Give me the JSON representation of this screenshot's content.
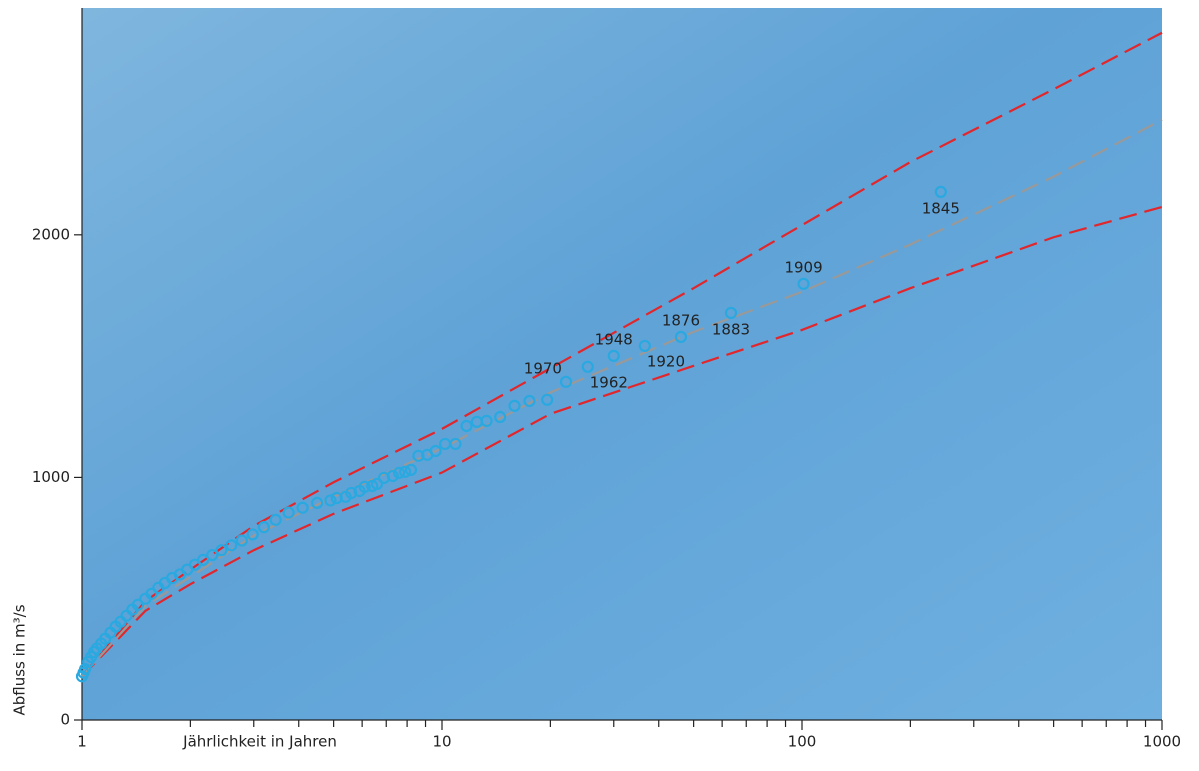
{
  "chart_data": {
    "type": "scatter",
    "x_label": "Jährlichkeit in Jahren",
    "y_label": "Abfluss in m³/s",
    "log_x": true,
    "xlim": [
      1,
      1000
    ],
    "xticks": [
      1,
      10,
      100,
      1000
    ],
    "xminorticks": [
      2,
      3,
      4,
      5,
      6,
      7,
      8,
      9,
      20,
      30,
      40,
      50,
      60,
      70,
      80,
      90,
      200,
      300,
      400,
      500,
      600,
      700,
      800,
      900
    ],
    "ylim": [
      0,
      2935
    ],
    "yticks": [
      0,
      1000,
      2000
    ],
    "series": [
      {
        "type": "line",
        "color": "#e2262b",
        "dashed": true,
        "x": [
          1,
          1.5,
          2,
          3,
          5,
          10,
          20,
          50,
          100,
          200,
          500,
          1000
        ],
        "values": [
          180,
          490,
          620,
          800,
          980,
          1200,
          1450,
          1780,
          2040,
          2300,
          2600,
          2833
        ]
      },
      {
        "type": "line",
        "color": "#e2262b",
        "dashed": true,
        "x": [
          1,
          1.5,
          2,
          3,
          5,
          10,
          20,
          50,
          100,
          200,
          500,
          1000
        ],
        "values": [
          180,
          450,
          560,
          700,
          850,
          1020,
          1262,
          1460,
          1608,
          1780,
          1990,
          2115
        ]
      },
      {
        "type": "line",
        "color": "#999999",
        "dashed": true,
        "x": [
          1,
          1.5,
          2,
          3,
          5,
          10,
          20,
          50,
          100,
          200,
          500,
          1000
        ],
        "values": [
          180,
          470,
          590,
          760,
          920,
          1120,
          1350,
          1600,
          1765,
          1960,
          2240,
          2474
        ]
      },
      {
        "type": "scatter",
        "color": "#29a9e0",
        "x": [
          1.0,
          1.01,
          1.02,
          1.04,
          1.06,
          1.08,
          1.1,
          1.13,
          1.16,
          1.2,
          1.24,
          1.28,
          1.33,
          1.38,
          1.43,
          1.5,
          1.56,
          1.63,
          1.7,
          1.78,
          1.87,
          1.96,
          2.06,
          2.17,
          2.3,
          2.44,
          2.6,
          2.78,
          2.98,
          3.2,
          3.45,
          3.75,
          4.1,
          4.5,
          4.9,
          5.1,
          5.4,
          5.6,
          5.9,
          6.1,
          6.4,
          6.6,
          6.9,
          7.3,
          7.6,
          7.9,
          8.2,
          8.6,
          9.1,
          9.6,
          10.2,
          10.9,
          11.7,
          12.5,
          13.3,
          14.5,
          15.9,
          17.5,
          19.6,
          22.1,
          25.4,
          30,
          36.6,
          46.1,
          63.5,
          101,
          243
        ],
        "values": [
          180,
          195,
          210,
          240,
          260,
          280,
          295,
          315,
          335,
          360,
          385,
          405,
          430,
          455,
          475,
          500,
          520,
          545,
          565,
          585,
          600,
          620,
          640,
          660,
          680,
          700,
          720,
          740,
          765,
          795,
          825,
          855,
          875,
          895,
          905,
          915,
          920,
          936,
          944,
          961,
          965,
          973,
          998,
          1006,
          1019,
          1023,
          1031,
          1089,
          1093,
          1109,
          1138,
          1138,
          1212,
          1229,
          1233,
          1249,
          1295,
          1315,
          1320,
          1394,
          1456,
          1501,
          1542,
          1579,
          1678,
          1798,
          2177
        ],
        "point_labels": [
          null,
          null,
          null,
          null,
          null,
          null,
          null,
          null,
          null,
          null,
          null,
          null,
          null,
          null,
          null,
          null,
          null,
          null,
          null,
          null,
          null,
          null,
          null,
          null,
          null,
          null,
          null,
          null,
          null,
          null,
          null,
          null,
          null,
          null,
          null,
          null,
          null,
          null,
          null,
          null,
          null,
          null,
          null,
          null,
          null,
          null,
          null,
          null,
          null,
          null,
          null,
          null,
          null,
          null,
          null,
          null,
          null,
          null,
          null,
          "1970",
          "1962",
          "1948",
          "1920",
          "1876",
          "1883",
          "1909",
          "1845"
        ],
        "label_side": [
          null,
          null,
          null,
          null,
          null,
          null,
          null,
          null,
          null,
          null,
          null,
          null,
          null,
          null,
          null,
          null,
          null,
          null,
          null,
          null,
          null,
          null,
          null,
          null,
          null,
          null,
          null,
          null,
          null,
          null,
          null,
          null,
          null,
          null,
          null,
          null,
          null,
          null,
          null,
          null,
          null,
          null,
          null,
          null,
          null,
          null,
          null,
          null,
          null,
          null,
          null,
          null,
          null,
          null,
          null,
          null,
          null,
          null,
          null,
          "above-left",
          "below-right",
          "above",
          "below-right",
          "above",
          "below",
          "above",
          "below"
        ]
      }
    ]
  }
}
